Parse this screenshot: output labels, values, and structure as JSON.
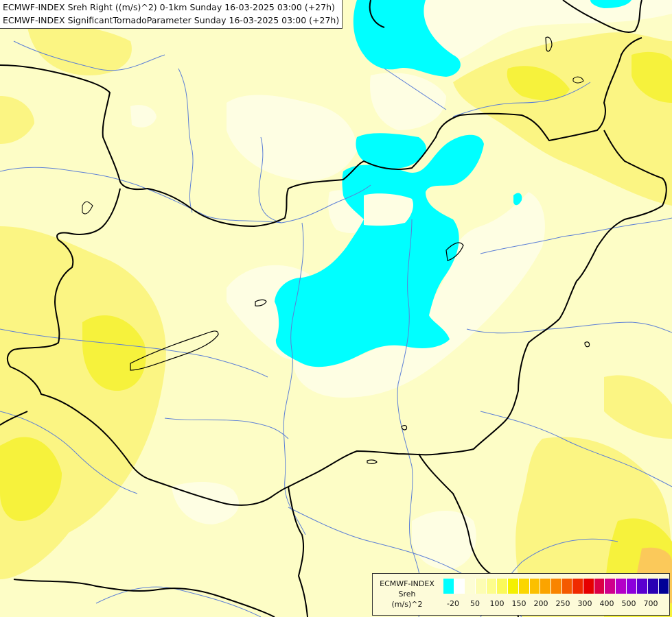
{
  "title": {
    "line1": "ECMWF-INDEX Sreh Right ((m/s)^2) 0-1km Sunday 16-03-2025 03:00 (+27h)",
    "line2": "ECMWF-INDEX SignificantTornadoParameter Sunday 16-03-2025 03:00 (+27h)"
  },
  "legend": {
    "line1": "ECMWF-INDEX",
    "line2": "Sreh",
    "line3": "(m/s)^2",
    "swatch_colors": [
      "#00ffff",
      "#ffffff",
      "#fdfdd5",
      "#fdfdb3",
      "#fdfd8c",
      "#fbf95a",
      "#f4f000",
      "#fbd600",
      "#fbc000",
      "#fba400",
      "#f98400",
      "#f45a00",
      "#f02a00",
      "#e60000",
      "#dc0046",
      "#d0008c",
      "#b400c8",
      "#8c00dc",
      "#5a00d0",
      "#2a00b4",
      "#000096"
    ],
    "tick_labels": [
      "-20",
      "50",
      "100",
      "150",
      "200",
      "250",
      "300",
      "400",
      "500",
      "700"
    ]
  },
  "colors": {
    "background": "#fdfdc6",
    "pale": "#fefee3",
    "yellow": "#fbf583",
    "strong_yellow": "#f6f23c",
    "negative": "#00ffff",
    "orange": "#fbc95a",
    "border": "#000000",
    "river": "#5c7fd6"
  }
}
